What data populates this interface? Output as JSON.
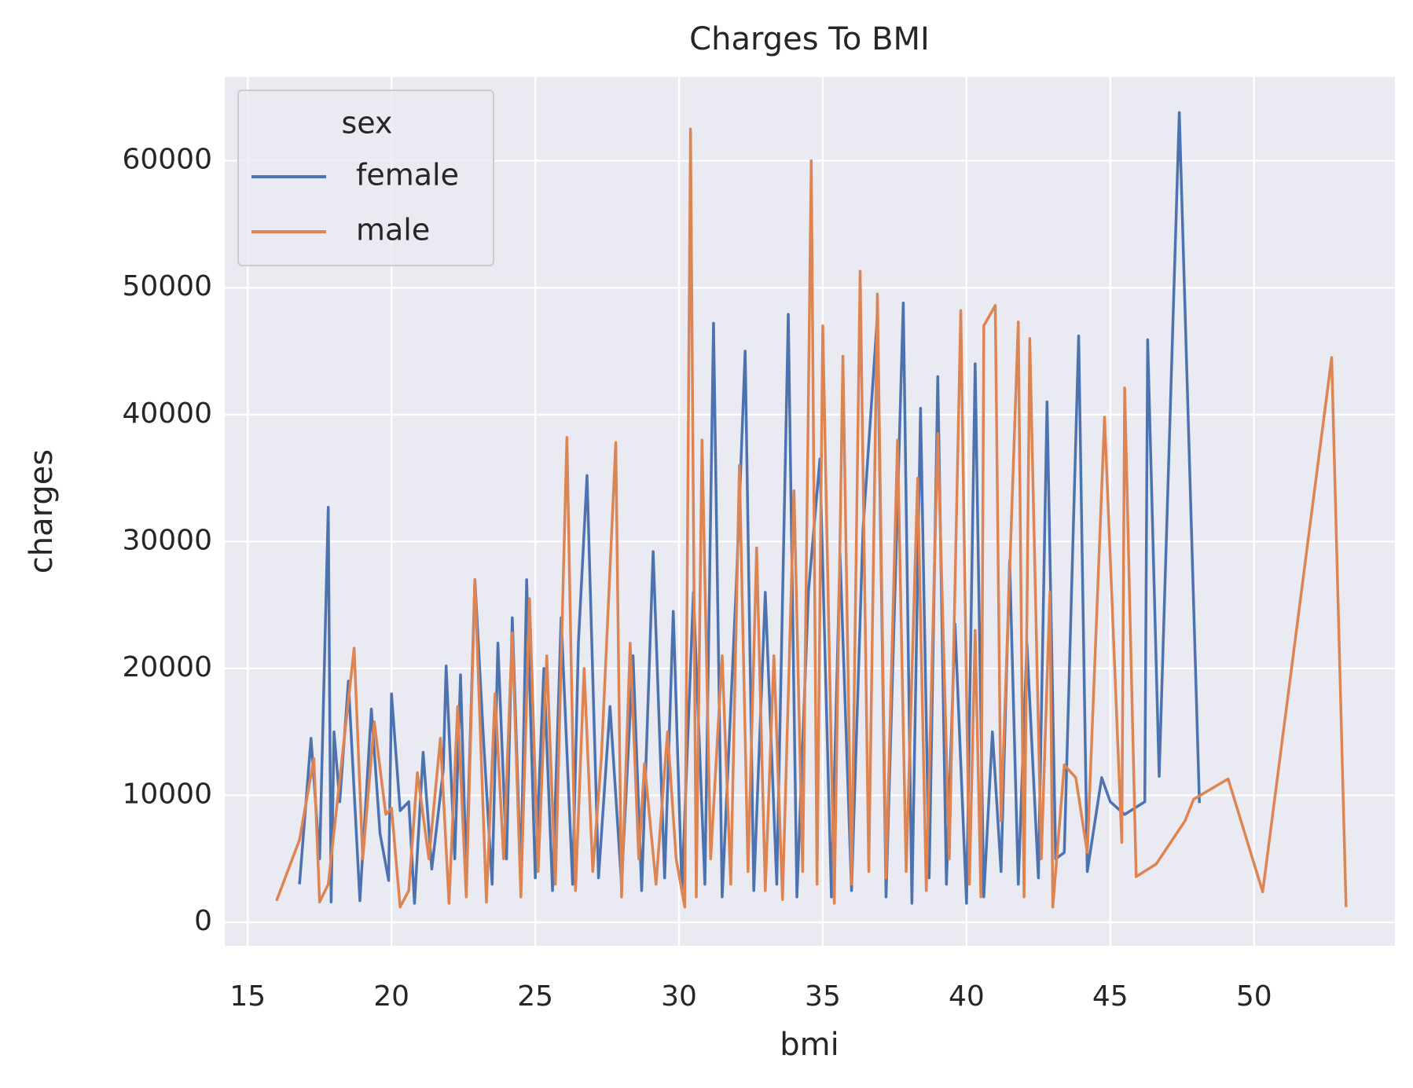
{
  "chart_data": {
    "type": "line",
    "title": "Charges To BMI",
    "x_label": "bmi",
    "y_label": "charges",
    "legend_title": "sex",
    "legend": "upper left",
    "grid": true,
    "xlim": [
      14.2,
      54.9
    ],
    "ylim": [
      -1850,
      66600
    ],
    "xticks": [
      15,
      20,
      25,
      30,
      35,
      40,
      45,
      50
    ],
    "yticks": [
      0,
      10000,
      20000,
      30000,
      40000,
      50000,
      60000
    ],
    "series": [
      {
        "name": "female",
        "color": "#4c72b0",
        "x": [
          16.8,
          17.2,
          17.5,
          17.8,
          17.9,
          18.0,
          18.2,
          18.5,
          18.9,
          19.3,
          19.6,
          19.9,
          20.0,
          20.3,
          20.6,
          20.8,
          21.1,
          21.4,
          21.8,
          21.9,
          22.2,
          22.4,
          22.6,
          22.9,
          23.2,
          23.5,
          23.7,
          24.0,
          24.2,
          24.5,
          24.7,
          25.0,
          25.3,
          25.6,
          25.9,
          26.3,
          26.5,
          26.8,
          27.2,
          27.6,
          28.0,
          28.4,
          28.7,
          29.1,
          29.5,
          29.8,
          30.1,
          30.5,
          30.9,
          31.2,
          31.5,
          32.0,
          32.3,
          32.6,
          33.0,
          33.4,
          33.8,
          34.1,
          34.5,
          34.9,
          35.3,
          35.6,
          36.0,
          36.4,
          36.9,
          37.2,
          37.6,
          37.8,
          38.1,
          38.4,
          38.7,
          39.0,
          39.3,
          39.6,
          40.0,
          40.3,
          40.6,
          40.9,
          41.2,
          41.5,
          41.8,
          42.1,
          42.5,
          42.8,
          43.1,
          43.4,
          43.9,
          44.2,
          44.7,
          45.0,
          45.5,
          46.2,
          46.3,
          46.7,
          47.4,
          48.1
        ],
        "values": [
          3000,
          14500,
          5000,
          32700,
          1600,
          15000,
          9500,
          19000,
          1700,
          16800,
          7000,
          3300,
          18000,
          8800,
          9500,
          1500,
          13400,
          4200,
          12000,
          20200,
          5000,
          19500,
          4000,
          27000,
          14400,
          3000,
          22000,
          5000,
          24000,
          3500,
          27000,
          3500,
          20000,
          2500,
          24000,
          3000,
          22000,
          35200,
          3500,
          17000,
          3000,
          21000,
          2500,
          29200,
          3500,
          24500,
          2500,
          26000,
          3000,
          47200,
          2000,
          27000,
          45000,
          2500,
          26000,
          3000,
          47900,
          2000,
          26000,
          36500,
          2000,
          29000,
          2500,
          31000,
          47800,
          2000,
          33000,
          48800,
          1500,
          40500,
          3500,
          43000,
          3000,
          23500,
          1500,
          44000,
          2000,
          15000,
          4000,
          28500,
          3000,
          22000,
          3500,
          41000,
          5000,
          5500,
          46200,
          4000,
          11400,
          9500,
          8500,
          9500,
          45900,
          11500,
          63800,
          9400
        ]
      },
      {
        "name": "male",
        "color": "#dd8452",
        "x": [
          16.0,
          16.8,
          17.3,
          17.5,
          17.8,
          18.7,
          19.0,
          19.4,
          19.8,
          20.0,
          20.3,
          20.6,
          20.9,
          21.3,
          21.7,
          22.0,
          22.3,
          22.6,
          22.9,
          23.3,
          23.6,
          23.9,
          24.2,
          24.5,
          24.8,
          25.1,
          25.4,
          25.7,
          26.1,
          26.4,
          26.7,
          27.0,
          27.3,
          27.8,
          28.0,
          28.3,
          28.6,
          28.8,
          29.2,
          29.6,
          29.9,
          30.2,
          30.4,
          30.6,
          30.8,
          31.1,
          31.5,
          31.8,
          32.1,
          32.4,
          32.7,
          33.0,
          33.3,
          33.6,
          34.0,
          34.3,
          34.6,
          34.8,
          35.0,
          35.4,
          35.7,
          36.0,
          36.3,
          36.6,
          36.9,
          37.2,
          37.6,
          37.9,
          38.3,
          38.6,
          39.0,
          39.4,
          39.8,
          40.1,
          40.3,
          40.5,
          40.6,
          41.0,
          41.2,
          41.8,
          42.0,
          42.2,
          42.6,
          42.9,
          43.0,
          43.4,
          43.8,
          44.2,
          44.8,
          45.4,
          45.5,
          45.9,
          46.6,
          47.6,
          47.9,
          49.1,
          50.3,
          52.7,
          53.2
        ],
        "values": [
          1700,
          6500,
          12900,
          1600,
          3000,
          21600,
          5000,
          15800,
          8500,
          9000,
          1200,
          2500,
          11800,
          5000,
          14500,
          1500,
          17000,
          2000,
          27000,
          1600,
          18000,
          5000,
          22800,
          2000,
          25500,
          4000,
          21000,
          3000,
          38200,
          2500,
          20000,
          4000,
          13000,
          37800,
          2000,
          22000,
          5000,
          12500,
          3000,
          15000,
          5000,
          1200,
          62500,
          2000,
          38000,
          5000,
          21000,
          3000,
          36000,
          4000,
          29500,
          2500,
          21000,
          1800,
          34000,
          4000,
          60000,
          3000,
          47000,
          1500,
          44600,
          3000,
          51300,
          4000,
          49500,
          3500,
          38000,
          4000,
          35000,
          2500,
          38500,
          5000,
          48200,
          3000,
          23000,
          2000,
          47000,
          48600,
          8000,
          47300,
          2000,
          46000,
          5000,
          26000,
          1200,
          12400,
          11400,
          5500,
          39800,
          6300,
          42100,
          3600,
          4600,
          8000,
          9700,
          11300,
          2400,
          44500,
          1200
        ]
      }
    ]
  }
}
